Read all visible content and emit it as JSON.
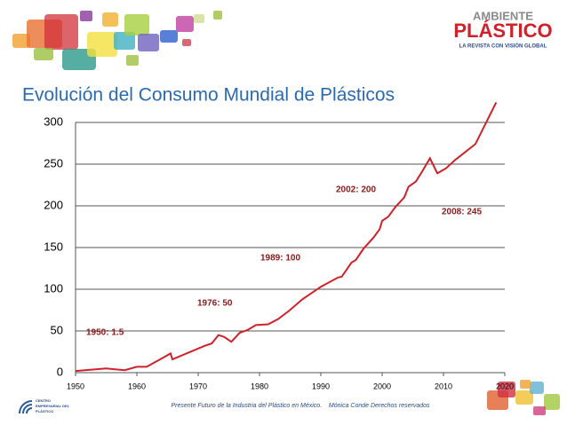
{
  "brand": {
    "name_top": "AMBIENTE",
    "name_main": "PLÁSTICO",
    "tagline": "LA REVISTA CON VISIÓN GLOBAL"
  },
  "footer_logo": [
    "CENTRO",
    "EMPRESARIAL DEL",
    "PLÁSTICO"
  ],
  "footer": "Presente Futuro de la Industria del Plástico en México.    Mónica Conde Derechos reservados",
  "chart_data": {
    "type": "line",
    "title": "Evolución del Consumo Mundial de Plásticos",
    "x": [
      1950,
      1955,
      1958,
      1960,
      1961.6,
      1963.8,
      1965.5,
      1965.8,
      1971,
      1972.2,
      1973.3,
      1974.2,
      1975.4,
      1976.8,
      1978,
      1979.4,
      1981.4,
      1983,
      1984.8,
      1987,
      1990,
      1992.8,
      1993.4,
      1995,
      1995.7,
      1997,
      1998.6,
      1999.6,
      2000,
      2001,
      2002.2,
      2003.6,
      2004.3,
      2005.5,
      2006.5,
      2007.8,
      2009,
      2010.4,
      2011.9,
      2015.2,
      2018.6
    ],
    "values": [
      2,
      5,
      3,
      7,
      7,
      16,
      23,
      16,
      32,
      35,
      45,
      43,
      37,
      48,
      51,
      57,
      58,
      64,
      74,
      88,
      103,
      114,
      115,
      132,
      135,
      149,
      162,
      172,
      182,
      187,
      199,
      210,
      223,
      229,
      241,
      257,
      239,
      245,
      255,
      274,
      324
    ],
    "color": "#d0212a",
    "xlim": [
      1950,
      2020
    ],
    "xticks": [
      1950,
      1960,
      1970,
      1980,
      1990,
      2000,
      2010,
      2020
    ],
    "ylim": [
      0,
      300
    ],
    "yticks": [
      0,
      50,
      100,
      150,
      200,
      250,
      300
    ],
    "grid": true,
    "annotations": [
      "1950: 1.5",
      "1976: 50",
      "1989: 100",
      "2002: 200",
      "2008: 245"
    ]
  }
}
